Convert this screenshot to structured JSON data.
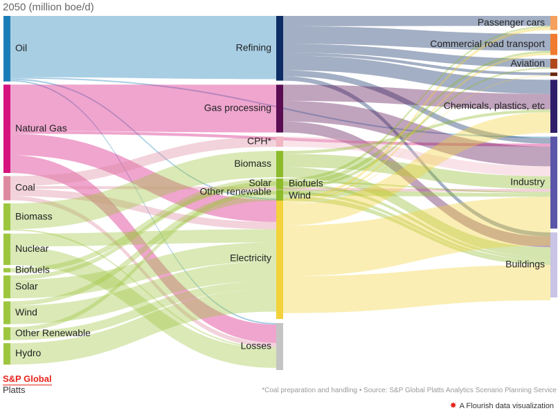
{
  "header": {
    "subtitle": "2050 (million boe/d)"
  },
  "logo": {
    "line1": "S&P Global",
    "line2": "Platts"
  },
  "footer": {
    "note": "*Coal preparation and handling • Source: S&P Global Platts Analytics Scenario Planning Service",
    "credit": "A Flourish data visualization",
    "credit_icon": "flourish-star-icon"
  },
  "chart_data": {
    "type": "sankey",
    "title": "",
    "subtitle": "2050 (million boe/d)",
    "columns": [
      [
        {
          "id": "oil",
          "label": "Oil",
          "value": 92,
          "color": "#1b7db8"
        },
        {
          "id": "gas",
          "label": "Natural Gas",
          "value": 124,
          "color": "#d6127e"
        },
        {
          "id": "coal",
          "label": "Coal",
          "value": 34,
          "color": "#dd8aa0"
        },
        {
          "id": "biomass_p",
          "label": "Biomass",
          "value": 38,
          "color": "#9dc63f"
        },
        {
          "id": "nuclear",
          "label": "Nuclear",
          "value": 44,
          "color": "#9dc63f"
        },
        {
          "id": "biofuels_p",
          "label": "Biofuels",
          "value": 6,
          "color": "#9dc63f"
        },
        {
          "id": "solar_p",
          "label": "Solar",
          "value": 32,
          "color": "#9dc63f"
        },
        {
          "id": "wind_p",
          "label": "Wind",
          "value": 32,
          "color": "#9dc63f"
        },
        {
          "id": "other_p",
          "label": "Other Renewable",
          "value": 18,
          "color": "#9dc63f"
        },
        {
          "id": "hydro",
          "label": "Hydro",
          "value": 30,
          "color": "#9dc63f"
        }
      ],
      [
        {
          "id": "refining",
          "label": "Refining",
          "value": 88,
          "color": "#0d2c63"
        },
        {
          "id": "gasproc",
          "label": "Gas processing",
          "value": 65,
          "color": "#5a0d52"
        },
        {
          "id": "cph",
          "label": "CPH*",
          "value": 14,
          "color": "#f0b6c4"
        },
        {
          "id": "biomass_t",
          "label": "Biomass",
          "value": 36,
          "color": "#8dbb2b"
        },
        {
          "id": "solar_t",
          "label": "Solar",
          "value": 6,
          "color": "#8dbb2b"
        },
        {
          "id": "other_t",
          "label": "Other renewable",
          "value": 6,
          "color": "#8dbb2b"
        },
        {
          "id": "electricity",
          "label": "Electricity",
          "value": 164,
          "color": "#f3d23b"
        },
        {
          "id": "losses",
          "label": "Losses",
          "value": 64,
          "color": "#c4c4c4"
        }
      ],
      [
        {
          "id": "biofuels_t",
          "label": "Biofuels",
          "value": 7,
          "color": "#8dbb2b"
        },
        {
          "id": "wind_t",
          "label": "Wind",
          "value": 6,
          "color": "#8dbb2b"
        }
      ],
      [
        {
          "id": "cars",
          "label": "Passenger cars",
          "value": 20,
          "color": "#f5a05c"
        },
        {
          "id": "commercial",
          "label": "Commercial road transport",
          "value": 30,
          "color": "#f07a2d"
        },
        {
          "id": "aviation",
          "label": "Aviation",
          "value": 14,
          "color": "#b0461a"
        },
        {
          "id": "marine",
          "label": "",
          "value": 5,
          "color": "#6a2a0e"
        },
        {
          "id": "chemicals",
          "label": "Chemicals, plastics, etc",
          "value": 75,
          "color": "#2f1d6b"
        },
        {
          "id": "industry",
          "label": "Industry",
          "value": 130,
          "color": "#5a55a8"
        },
        {
          "id": "buildings",
          "label": "Buildings",
          "value": 92,
          "color": "#c9c4e6"
        }
      ]
    ],
    "links": [
      {
        "source": "oil",
        "target": "refining",
        "value": 86
      },
      {
        "source": "oil",
        "target": "electricity",
        "value": 2
      },
      {
        "source": "oil",
        "target": "losses",
        "value": 2
      },
      {
        "source": "oil",
        "target": "industry",
        "value": 2
      },
      {
        "source": "gas",
        "target": "gasproc",
        "value": 65
      },
      {
        "source": "gas",
        "target": "electricity",
        "value": 30
      },
      {
        "source": "gas",
        "target": "losses",
        "value": 25
      },
      {
        "source": "gas",
        "target": "industry",
        "value": 4
      },
      {
        "source": "coal",
        "target": "cph",
        "value": 14
      },
      {
        "source": "coal",
        "target": "electricity",
        "value": 10
      },
      {
        "source": "coal",
        "target": "losses",
        "value": 6
      },
      {
        "source": "coal",
        "target": "industry",
        "value": 4
      },
      {
        "source": "biomass_p",
        "target": "biomass_t",
        "value": 36
      },
      {
        "source": "biomass_p",
        "target": "losses",
        "value": 2
      },
      {
        "source": "nuclear",
        "target": "electricity",
        "value": 18
      },
      {
        "source": "nuclear",
        "target": "losses",
        "value": 26
      },
      {
        "source": "biofuels_p",
        "target": "biofuels_t",
        "value": 6
      },
      {
        "source": "solar_p",
        "target": "solar_t",
        "value": 6
      },
      {
        "source": "solar_p",
        "target": "electricity",
        "value": 26
      },
      {
        "source": "wind_p",
        "target": "wind_t",
        "value": 6
      },
      {
        "source": "wind_p",
        "target": "electricity",
        "value": 26
      },
      {
        "source": "other_p",
        "target": "other_t",
        "value": 6
      },
      {
        "source": "other_p",
        "target": "electricity",
        "value": 12
      },
      {
        "source": "hydro",
        "target": "electricity",
        "value": 30
      },
      {
        "source": "refining",
        "target": "cars",
        "value": 14
      },
      {
        "source": "refining",
        "target": "commercial",
        "value": 24
      },
      {
        "source": "refining",
        "target": "aviation",
        "value": 12
      },
      {
        "source": "refining",
        "target": "marine",
        "value": 4
      },
      {
        "source": "refining",
        "target": "chemicals",
        "value": 20
      },
      {
        "source": "refining",
        "target": "industry",
        "value": 8
      },
      {
        "source": "refining",
        "target": "buildings",
        "value": 6
      },
      {
        "source": "gasproc",
        "target": "chemicals",
        "value": 22
      },
      {
        "source": "gasproc",
        "target": "industry",
        "value": 28
      },
      {
        "source": "gasproc",
        "target": "buildings",
        "value": 15
      },
      {
        "source": "cph",
        "target": "industry",
        "value": 14
      },
      {
        "source": "biomass_t",
        "target": "industry",
        "value": 18
      },
      {
        "source": "biomass_t",
        "target": "buildings",
        "value": 14
      },
      {
        "source": "biomass_t",
        "target": "chemicals",
        "value": 4
      },
      {
        "source": "solar_t",
        "target": "buildings",
        "value": 4
      },
      {
        "source": "solar_t",
        "target": "industry",
        "value": 2
      },
      {
        "source": "other_t",
        "target": "buildings",
        "value": 4
      },
      {
        "source": "other_t",
        "target": "industry",
        "value": 2
      },
      {
        "source": "biofuels_t",
        "target": "cars",
        "value": 2
      },
      {
        "source": "biofuels_t",
        "target": "commercial",
        "value": 3
      },
      {
        "source": "biofuels_t",
        "target": "aviation",
        "value": 2
      },
      {
        "source": "wind_t",
        "target": "industry",
        "value": 3
      },
      {
        "source": "wind_t",
        "target": "buildings",
        "value": 3
      },
      {
        "source": "electricity",
        "target": "cars",
        "value": 4
      },
      {
        "source": "electricity",
        "target": "commercial",
        "value": 3
      },
      {
        "source": "electricity",
        "target": "chemicals",
        "value": 29
      },
      {
        "source": "electricity",
        "target": "industry",
        "value": 69
      },
      {
        "source": "electricity",
        "target": "buildings",
        "value": 50
      },
      {
        "source": "electricity",
        "target": "marine",
        "value": 1
      }
    ]
  }
}
